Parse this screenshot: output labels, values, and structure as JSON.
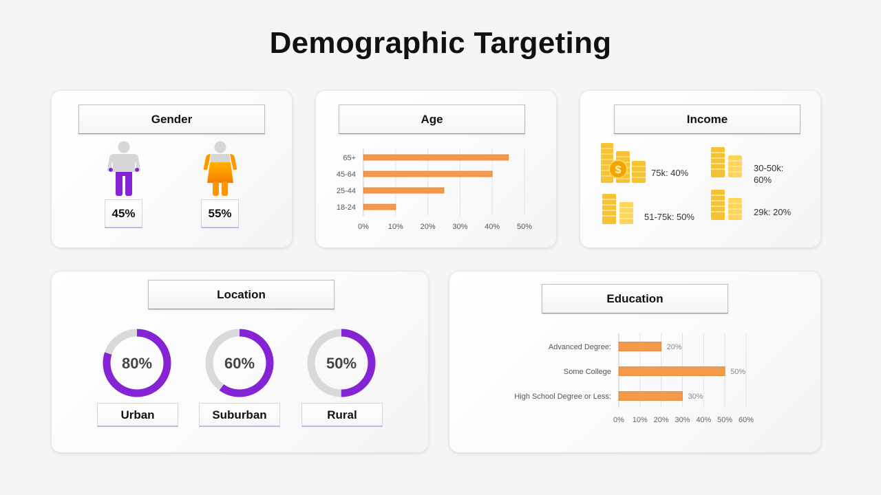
{
  "title": "Demographic Targeting",
  "colors": {
    "purple": "#8524d4",
    "orange": "#f59a4a",
    "gold": "#f5c232",
    "grey_ring": "#d9d9d9"
  },
  "gender": {
    "header": "Gender",
    "items": [
      {
        "label": "45%",
        "icon": "male-icon"
      },
      {
        "label": "55%",
        "icon": "female-icon"
      }
    ]
  },
  "age": {
    "header": "Age",
    "chart_data": {
      "type": "bar",
      "orientation": "horizontal",
      "categories": [
        "65+",
        "45-64",
        "25-44",
        "18-24"
      ],
      "values": [
        45,
        40,
        25,
        10
      ],
      "xlim": [
        0,
        50
      ],
      "ticks": [
        "0%",
        "10%",
        "20%",
        "30%",
        "40%",
        "50%"
      ],
      "grid": true
    }
  },
  "income": {
    "header": "Income",
    "items": [
      {
        "label": "75k: 40%",
        "icon": "coins-dollar-icon"
      },
      {
        "label": "30-50k: 60%",
        "icon": "coins-icon"
      },
      {
        "label": "51-75k: 50%",
        "icon": "coins-icon"
      },
      {
        "label": "29k: 20%",
        "icon": "coins-icon"
      }
    ]
  },
  "location": {
    "header": "Location",
    "items": [
      {
        "name": "Urban",
        "value": 80,
        "label": "80%"
      },
      {
        "name": "Suburban",
        "value": 60,
        "label": "60%"
      },
      {
        "name": "Rural",
        "value": 50,
        "label": "50%"
      }
    ]
  },
  "education": {
    "header": "Education",
    "chart_data": {
      "type": "bar",
      "orientation": "horizontal",
      "categories": [
        "Advanced Degree:",
        "Some College",
        "High School Degree or Less:"
      ],
      "values": [
        20,
        50,
        30
      ],
      "data_labels": [
        "20%",
        "50%",
        "30%"
      ],
      "xlim": [
        0,
        60
      ],
      "ticks": [
        "0%",
        "10%",
        "20%",
        "30%",
        "40%",
        "50%",
        "60%"
      ],
      "grid": true
    }
  }
}
